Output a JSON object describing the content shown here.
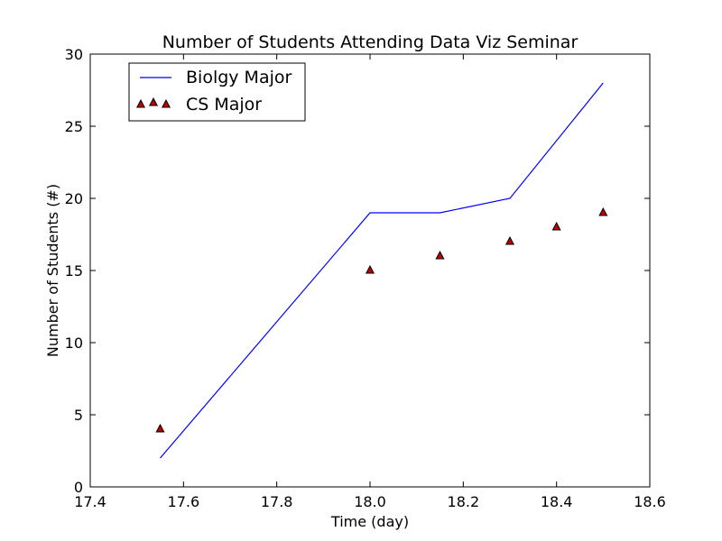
{
  "chart_data": {
    "type": "line",
    "title": "Number of Students Attending Data Viz Seminar",
    "xlabel": "Time (day)",
    "ylabel": "Number of Students (#)",
    "xlim": [
      17.4,
      18.6
    ],
    "ylim": [
      0,
      30
    ],
    "x_ticks": [
      17.4,
      17.6,
      17.8,
      18.0,
      18.2,
      18.4,
      18.6
    ],
    "x_tick_labels": [
      "17.4",
      "17.6",
      "17.8",
      "18.0",
      "18.2",
      "18.4",
      "18.6"
    ],
    "y_ticks": [
      0,
      5,
      10,
      15,
      20,
      25,
      30
    ],
    "y_tick_labels": [
      "0",
      "5",
      "10",
      "15",
      "20",
      "25",
      "30"
    ],
    "grid": false,
    "legend_position": "upper-left",
    "series": [
      {
        "name": "Biolgy Major",
        "kind": "line",
        "color": "#0000ff",
        "x": [
          17.55,
          18.0,
          18.15,
          18.3,
          18.5
        ],
        "y": [
          2,
          19,
          19,
          20,
          28
        ]
      },
      {
        "name": "CS Major",
        "kind": "scatter",
        "marker": "triangle",
        "color": "#bf0000",
        "edge_color": "#000000",
        "x": [
          17.55,
          18.0,
          18.15,
          18.3,
          18.4,
          18.5
        ],
        "y": [
          4,
          15,
          16,
          17,
          18,
          19
        ]
      }
    ]
  }
}
